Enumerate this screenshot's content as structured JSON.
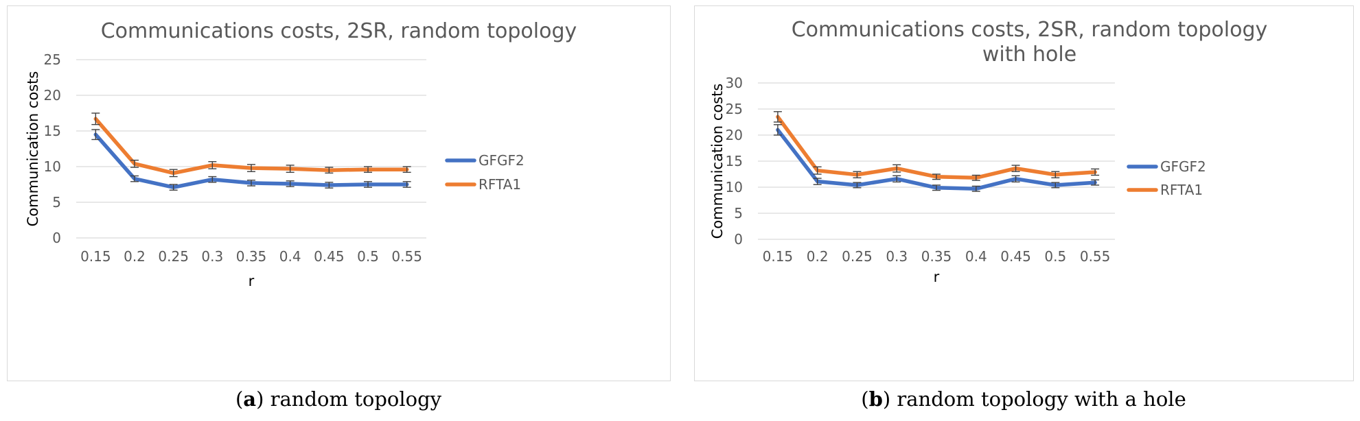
{
  "chart_data": [
    {
      "type": "line",
      "title": "Communications costs, 2SR, random topology",
      "xlabel": "r",
      "ylabel": "Communication costs",
      "categories": [
        "0.15",
        "0.2",
        "0.25",
        "0.3",
        "0.35",
        "0.4",
        "0.45",
        "0.5",
        "0.55"
      ],
      "ylim": [
        0,
        25
      ],
      "yticks": [
        "0",
        "5",
        "10",
        "15",
        "20",
        "25"
      ],
      "grid": true,
      "legend_position": "right",
      "error_bars": true,
      "series": [
        {
          "name": "GFGF2",
          "color": "#4472c4",
          "values": [
            14.5,
            8.3,
            7.1,
            8.2,
            7.7,
            7.6,
            7.4,
            7.5,
            7.5
          ],
          "errors": [
            0.7,
            0.4,
            0.4,
            0.4,
            0.4,
            0.4,
            0.4,
            0.4,
            0.4
          ]
        },
        {
          "name": "RFTA1",
          "color": "#ed7d31",
          "values": [
            16.7,
            10.4,
            9.1,
            10.2,
            9.8,
            9.7,
            9.5,
            9.6,
            9.6
          ],
          "errors": [
            0.8,
            0.5,
            0.5,
            0.5,
            0.5,
            0.5,
            0.4,
            0.4,
            0.4
          ]
        }
      ]
    },
    {
      "type": "line",
      "title": [
        "Communications costs, 2SR, random topology",
        "with hole"
      ],
      "xlabel": "r",
      "ylabel": "Communication costs",
      "categories": [
        "0.15",
        "0.2",
        "0.25",
        "0.3",
        "0.35",
        "0.4",
        "0.45",
        "0.5",
        "0.55"
      ],
      "ylim": [
        0,
        30
      ],
      "yticks": [
        "0",
        "5",
        "10",
        "15",
        "20",
        "25",
        "30"
      ],
      "grid": true,
      "legend_position": "right",
      "error_bars": true,
      "series": [
        {
          "name": "GFGF2",
          "color": "#4472c4",
          "values": [
            21.0,
            11.1,
            10.4,
            11.6,
            9.9,
            9.7,
            11.6,
            10.4,
            10.9
          ],
          "errors": [
            1.0,
            0.6,
            0.5,
            0.6,
            0.5,
            0.5,
            0.6,
            0.5,
            0.5
          ]
        },
        {
          "name": "RFTA1",
          "color": "#ed7d31",
          "values": [
            23.5,
            13.2,
            12.4,
            13.6,
            12.0,
            11.8,
            13.6,
            12.4,
            12.9
          ],
          "errors": [
            1.0,
            0.7,
            0.6,
            0.7,
            0.5,
            0.5,
            0.6,
            0.6,
            0.6
          ]
        }
      ]
    }
  ],
  "captions": [
    {
      "letter": "a",
      "open": "(",
      "close": ") random topology"
    },
    {
      "letter": "b",
      "open": "(",
      "close": ") random topology with a hole"
    }
  ]
}
